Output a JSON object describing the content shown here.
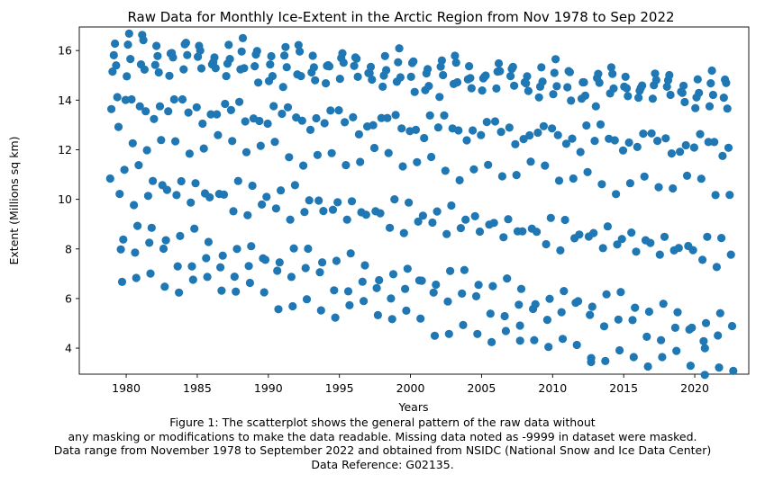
{
  "chart_data": {
    "type": "scatter",
    "title": "Raw Data for Monthly Ice-Extent in the Arctic Region from Nov 1978 to Sep 2022",
    "xlabel": "Years",
    "ylabel": "Extent (Millions sq km)",
    "xlim": [
      1976.7,
      2023.8
    ],
    "ylim": [
      2.95,
      16.95
    ],
    "xticks": [
      1980,
      1985,
      1990,
      1995,
      2000,
      2005,
      2010,
      2015,
      2020
    ],
    "yticks": [
      4,
      6,
      8,
      10,
      12,
      14,
      16
    ],
    "grid": false,
    "legend": "none",
    "marker_color": "#1f77b4",
    "month_profile": [
      15.45,
      16.2,
      16.35,
      15.55,
      13.75,
      12.5,
      10.3,
      8.0,
      7.05,
      8.75,
      10.95,
      13.85
    ],
    "decline_per_year": [
      0.035,
      0.04,
      0.04,
      0.033,
      0.035,
      0.05,
      0.06,
      0.085,
      0.095,
      0.085,
      0.07,
      0.045
    ],
    "start_year": 1978,
    "start_month": 11,
    "end_year": 2022,
    "end_month": 9,
    "points": []
  },
  "caption": {
    "lines": [
      "Figure 1: The scatterplot shows the general pattern of the raw data without",
      "any masking or modifications to make the data readable. Missing data noted as -9999 in dataset were masked.",
      "Data range from November 1978 to September 2022 and obtained from NSIDC (National Snow and Ice Data Center)",
      "Data Reference: G02135."
    ]
  }
}
